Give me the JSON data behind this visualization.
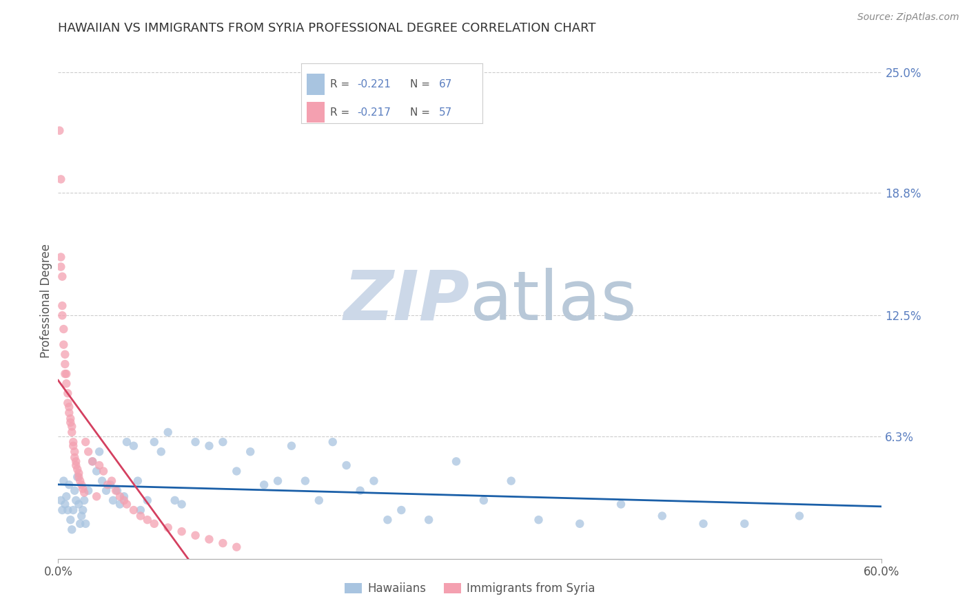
{
  "title": "HAWAIIAN VS IMMIGRANTS FROM SYRIA PROFESSIONAL DEGREE CORRELATION CHART",
  "source": "Source: ZipAtlas.com",
  "ylabel": "Professional Degree",
  "xlim": [
    0.0,
    0.6
  ],
  "ylim": [
    0.0,
    0.265
  ],
  "xtick_labels": [
    "0.0%",
    "60.0%"
  ],
  "xtick_positions": [
    0.0,
    0.6
  ],
  "ytick_labels_right": [
    "6.3%",
    "12.5%",
    "18.8%",
    "25.0%"
  ],
  "ytick_positions_right": [
    0.063,
    0.125,
    0.188,
    0.25
  ],
  "hawaiians_color": "#a8c4e0",
  "syria_color": "#f4a0b0",
  "hawaii_line_color": "#1a5fa8",
  "syria_line_color": "#d44060",
  "watermark_zip_color": "#ccd8e8",
  "watermark_atlas_color": "#b8c8d8",
  "hawaii_R": -0.221,
  "hawaii_N": 67,
  "syria_R": -0.217,
  "syria_N": 57,
  "hawaii_x": [
    0.002,
    0.003,
    0.004,
    0.005,
    0.006,
    0.007,
    0.008,
    0.009,
    0.01,
    0.011,
    0.012,
    0.013,
    0.014,
    0.015,
    0.016,
    0.017,
    0.018,
    0.019,
    0.02,
    0.022,
    0.025,
    0.028,
    0.03,
    0.032,
    0.035,
    0.038,
    0.04,
    0.043,
    0.045,
    0.048,
    0.05,
    0.055,
    0.058,
    0.06,
    0.065,
    0.07,
    0.075,
    0.08,
    0.085,
    0.09,
    0.1,
    0.11,
    0.12,
    0.13,
    0.14,
    0.15,
    0.16,
    0.17,
    0.18,
    0.19,
    0.2,
    0.21,
    0.22,
    0.23,
    0.24,
    0.25,
    0.27,
    0.29,
    0.31,
    0.33,
    0.35,
    0.38,
    0.41,
    0.44,
    0.47,
    0.5,
    0.54
  ],
  "hawaii_y": [
    0.03,
    0.025,
    0.04,
    0.028,
    0.032,
    0.025,
    0.038,
    0.02,
    0.015,
    0.025,
    0.035,
    0.03,
    0.042,
    0.028,
    0.018,
    0.022,
    0.025,
    0.03,
    0.018,
    0.035,
    0.05,
    0.045,
    0.055,
    0.04,
    0.035,
    0.038,
    0.03,
    0.035,
    0.028,
    0.032,
    0.06,
    0.058,
    0.04,
    0.025,
    0.03,
    0.06,
    0.055,
    0.065,
    0.03,
    0.028,
    0.06,
    0.058,
    0.06,
    0.045,
    0.055,
    0.038,
    0.04,
    0.058,
    0.04,
    0.03,
    0.06,
    0.048,
    0.035,
    0.04,
    0.02,
    0.025,
    0.02,
    0.05,
    0.03,
    0.04,
    0.02,
    0.018,
    0.028,
    0.022,
    0.018,
    0.018,
    0.022
  ],
  "syria_x": [
    0.001,
    0.002,
    0.002,
    0.002,
    0.003,
    0.003,
    0.003,
    0.004,
    0.004,
    0.005,
    0.005,
    0.005,
    0.006,
    0.006,
    0.007,
    0.007,
    0.008,
    0.008,
    0.009,
    0.009,
    0.01,
    0.01,
    0.011,
    0.011,
    0.012,
    0.012,
    0.013,
    0.013,
    0.014,
    0.015,
    0.015,
    0.016,
    0.017,
    0.018,
    0.019,
    0.02,
    0.022,
    0.025,
    0.028,
    0.03,
    0.033,
    0.036,
    0.039,
    0.042,
    0.045,
    0.048,
    0.05,
    0.055,
    0.06,
    0.065,
    0.07,
    0.08,
    0.09,
    0.1,
    0.11,
    0.12,
    0.13
  ],
  "syria_y": [
    0.22,
    0.195,
    0.155,
    0.15,
    0.145,
    0.13,
    0.125,
    0.118,
    0.11,
    0.105,
    0.1,
    0.095,
    0.095,
    0.09,
    0.085,
    0.08,
    0.078,
    0.075,
    0.072,
    0.07,
    0.068,
    0.065,
    0.06,
    0.058,
    0.055,
    0.052,
    0.05,
    0.048,
    0.046,
    0.044,
    0.042,
    0.04,
    0.038,
    0.036,
    0.034,
    0.06,
    0.055,
    0.05,
    0.032,
    0.048,
    0.045,
    0.038,
    0.04,
    0.035,
    0.032,
    0.03,
    0.028,
    0.025,
    0.022,
    0.02,
    0.018,
    0.016,
    0.014,
    0.012,
    0.01,
    0.008,
    0.006
  ],
  "legend_text_color": "#5b7fc0",
  "bottom_legend_hawaii": "Hawaiians",
  "bottom_legend_syria": "Immigrants from Syria"
}
